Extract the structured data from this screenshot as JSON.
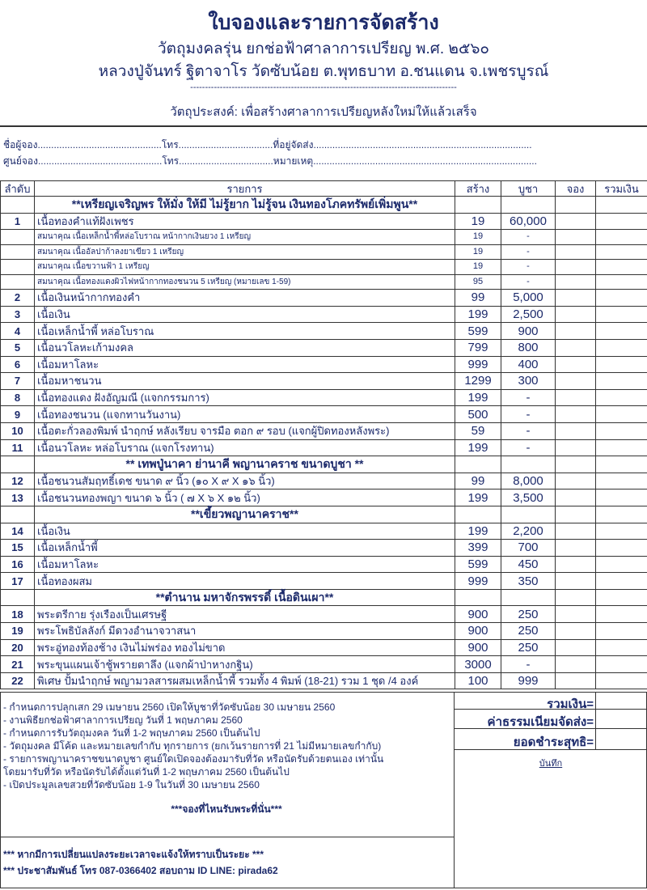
{
  "header": {
    "title": "ใบจองและรายการจัดสร้าง",
    "subtitle1": "วัตถุมงคลรุ่น ยกช่อฟ้าศาลาการเปรียญ พ.ศ. ๒๕๖๐",
    "subtitle2": "หลวงปู่จันทร์ ฐิตาจาโร วัดซับน้อย ต.พุทธบาท อ.ชนแดน จ.เพชรบูรณ์",
    "divider": "------------------------------------------------------------------------------------------",
    "objective": "วัตถุประสงค์: เพื่อสร้างศาลาการเปรียญหลังใหม่ให้แล้วเสร็จ"
  },
  "form": {
    "line1": "ชื่อผู้จอง..............................................โทร...................................ที่อยู่จัดส่ง.................................................................................",
    "line2": "ศูนย์จอง..............................................โทร...................................หมายเหตุ..................................................................................."
  },
  "table": {
    "headers": [
      "ลำดับ",
      "รายการ",
      "สร้าง",
      "บูชา",
      "จอง",
      "รวมเงิน"
    ],
    "rows": [
      {
        "type": "sec",
        "name": "**เหรียญเจริญพร ให้มั่ง ให้มี ไม่รู้ยาก ไม่รู้จน เงินทองโภคทรัพย์เพิ่มพูน**"
      },
      {
        "no": "1",
        "name": "เนื้อทองคำแท้ฝังเพชร",
        "create": "19",
        "price": "60,000"
      },
      {
        "type": "sub",
        "name": "สมนาคุณ เนื้อเหล็กน้ำพี้หล่อโบราณ หน้ากากเงินยวง 1 เหรียญ",
        "create": "19",
        "price": "-"
      },
      {
        "type": "sub",
        "name": "สมนาคุณ เนื้ออัลปาก้าลงยาเขียว 1 เหรียญ",
        "create": "19",
        "price": "-"
      },
      {
        "type": "sub",
        "name": "สมนาคุณ เนื้อขวานฟ้า 1 เหรียญ",
        "create": "19",
        "price": "-"
      },
      {
        "type": "sub",
        "name": "สมนาคุณ เนื้อทองแดงผิวไฟหน้ากากทองชนวน 5 เหรียญ (หมายเลข 1-59)",
        "create": "95",
        "price": "-"
      },
      {
        "no": "2",
        "name": "เนื้อเงินหน้ากากทองคำ",
        "create": "99",
        "price": "5,000"
      },
      {
        "no": "3",
        "name": "เนื้อเงิน",
        "create": "199",
        "price": "2,500"
      },
      {
        "no": "4",
        "name": "เนื้อเหล็กน้ำพี้ หล่อโบราณ",
        "create": "599",
        "price": "900"
      },
      {
        "no": "5",
        "name": "เนื้อนวโลหะเก้ามงคล",
        "create": "799",
        "price": "800"
      },
      {
        "no": "6",
        "name": "เนื้อมหาโลหะ",
        "create": "999",
        "price": "400"
      },
      {
        "no": "7",
        "name": "เนื้อมหาชนวน",
        "create": "1299",
        "price": "300"
      },
      {
        "no": "8",
        "name": "เนื้อทองแดง ฝังอัญมณี (แจกกรรมการ)",
        "create": "199",
        "price": "-"
      },
      {
        "no": "9",
        "name": "เนื้อทองชนวน (แจกทานวันงาน)",
        "create": "500",
        "price": "-"
      },
      {
        "no": "10",
        "name": "เนื้อตะกั่วลองพิมพ์ นำฤกษ์ หลังเรียบ จารมือ ตอก ๙ รอบ (แจกผู้ปิดทองหลังพระ)",
        "create": "59",
        "price": "-"
      },
      {
        "no": "11",
        "name": "เนื้อนวโลหะ หล่อโบราณ (แจกโรงทาน)",
        "create": "199",
        "price": "-"
      },
      {
        "type": "sec",
        "name": "** เทพปู่นาคา ย่านาคี พญานาคราช ขนาดบูชา **"
      },
      {
        "no": "12",
        "name": "เนื้อชนวนสัมฤทธิ์เดช ขนาด ๙ นิ้ว (๑๐ X ๙ X ๑๖ นิ้ว)",
        "create": "99",
        "price": "8,000"
      },
      {
        "no": "13",
        "name": "เนื้อชนวนทองพญา    ขนาด ๖ นิ้ว ( ๗ X ๖ X ๑๒ นิ้ว)",
        "create": "199",
        "price": "3,500"
      },
      {
        "type": "sec",
        "name": "**เขี้ยวพญานาคราช**"
      },
      {
        "no": "14",
        "name": "เนื้อเงิน",
        "create": "199",
        "price": "2,200"
      },
      {
        "no": "15",
        "name": "เนื้อเหล็กน้ำพี้",
        "create": "399",
        "price": "700"
      },
      {
        "no": "16",
        "name": "เนื้อมหาโลหะ",
        "create": "599",
        "price": "450"
      },
      {
        "no": "17",
        "name": "เนื้อทองผสม",
        "create": "999",
        "price": "350"
      },
      {
        "type": "sec",
        "name": "**ตำนาน มหาจักรพรรดิ์ เนื้อดินเผา**"
      },
      {
        "no": "18",
        "name": "พระตรีกาย รุ่งเรืองเป็นเศรษฐี",
        "create": "900",
        "price": "250"
      },
      {
        "no": "19",
        "name": "พระโพธิบัลลังก์ มีดวงอำนาจวาสนา",
        "create": "900",
        "price": "250"
      },
      {
        "no": "20",
        "name": "พระอู่ทองท้องช้าง เงินไม่พร่อง ทองไม่ขาด",
        "create": "900",
        "price": "250"
      },
      {
        "no": "21",
        "name": "พระขุนแผนเจ้าชู้พรายตาลึง (แจกผ้าป่าหางกฐิน)",
        "create": "3000",
        "price": "-"
      },
      {
        "no": "22",
        "name": "พิเศษ  ปั้มนำฤกษ์ พญามวลสารผสมเหล็กน้ำพี้ รวมทั้ง 4 พิมพ์ (18-21) รวม 1 ชุด /4 องค์",
        "create": "100",
        "price": "999"
      }
    ]
  },
  "totals": {
    "sum": "รวมเงิน=",
    "shipping": "ค่าธรรมเนียมจัดส่ง=",
    "net": "ยอดชำระสุทธิ=",
    "memo": "บันทึก"
  },
  "notes": [
    "- กำหนดการปลุกเสก 29 เมษายน 2560 เปิดให้บูชาที่วัดซับน้อย 30 เมษายน 2560",
    "- งานพิธียกช่อฟ้าศาลาการเปรียญ วันที่ 1 พฤษภาคม 2560",
    "- กำหนดการรับวัตถุมงคล วันที่ 1-2 พฤษภาคม 2560 เป็นต้นไป",
    "- วัตถุมงคล มีโค้ด และหมายเลขกำกับ ทุกรายการ (ยกเว้นรายการที่ 21 ไม่มีหมายเลขกำกับ)",
    "- รายการพญานาคราชขนาดบูชา ศูนย์ใดเปิดจองต้องมารับที่วัด หรือนัดรับด้วยตนเอง เท่านั้น",
    "โดยมารับที่วัด หรือนัดรับได้ตั้งแต่วันที่  1-2 พฤษภาคม 2560 เป็นต้นไป",
    "- เปิดประมูลเลขสวยที่วัดซับน้อย 1-9  ในวันที่ 30 เมษายน 2560"
  ],
  "tagline": "***จองที่ไหนรับพระที่นั่น***",
  "footer": [
    "*** หากมีการเปลี่ยนแปลงระยะเวลาจะแจ้งให้ทราบเป็นระยะ ***",
    "*** ประชาสัมพันธ์ โทร 087-0366402 สอบถาม ID LINE: pirada62"
  ]
}
